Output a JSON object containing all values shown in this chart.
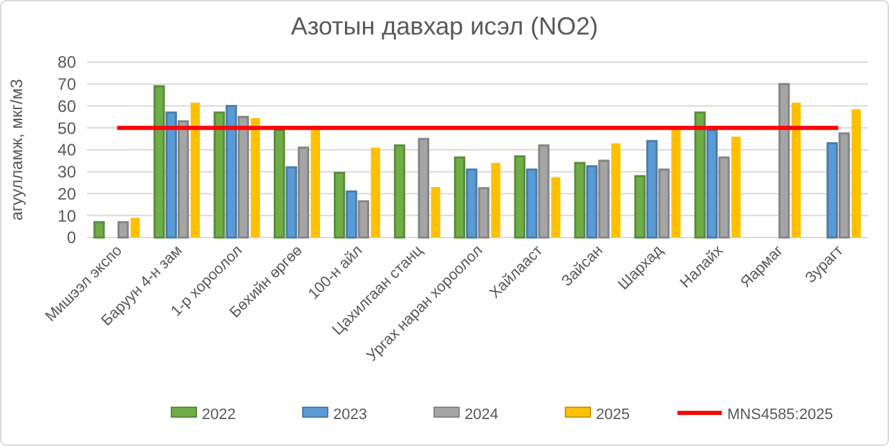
{
  "chart_data": {
    "type": "bar",
    "title": "Азотын давхар исэл (NO2)",
    "ylabel": "агуулламж, мкг/м3",
    "categories": [
      "Мишээл экспо",
      "Баруун 4-н зам",
      "1-р хороолол",
      "Бөхийн өргөө",
      "100-н айл",
      "Цахилгаан станц",
      "Ургах наран хороолол",
      "Хайлааст",
      "Зайсан",
      "Шархад",
      "Налайх",
      "Яармаг",
      "Зурагт"
    ],
    "series": [
      {
        "name": "2022",
        "color": "#70ad47",
        "values": [
          7,
          69,
          57,
          49,
          29.5,
          42,
          36.5,
          37,
          34,
          28,
          57,
          null,
          null
        ]
      },
      {
        "name": "2023",
        "color": "#5b9bd5",
        "values": [
          null,
          57,
          60,
          32,
          21,
          null,
          31,
          31,
          32.5,
          44,
          49,
          null,
          43
        ]
      },
      {
        "name": "2024",
        "color": "#a5a5a5",
        "values": [
          7,
          53,
          55,
          41,
          16.5,
          45,
          22.5,
          42,
          35,
          31,
          36.5,
          70,
          47.5
        ]
      },
      {
        "name": "2025",
        "color": "#ffc000",
        "values": [
          9,
          61.5,
          54.5,
          51,
          41,
          23,
          34,
          27.5,
          43,
          49.5,
          46,
          61.5,
          58.5
        ]
      },
      {
        "name": "MNS4585:2025",
        "type": "line",
        "color": "#ff0000",
        "values": [
          50,
          50,
          50,
          50,
          50,
          50,
          50,
          50,
          50,
          50,
          50,
          50,
          50
        ]
      }
    ],
    "ylim": [
      0,
      80
    ],
    "yticks": [
      0,
      10,
      20,
      30,
      40,
      50,
      60,
      70,
      80
    ],
    "grid": "y",
    "legend": "bottom"
  }
}
